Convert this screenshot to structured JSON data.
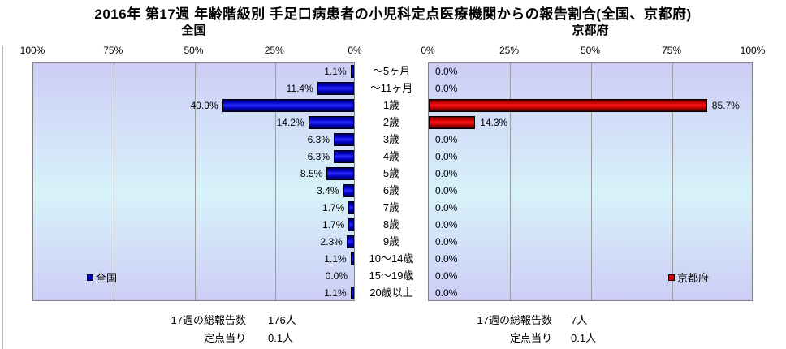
{
  "title": "2016年 第17週 年齢階級別 手足口病患者の小児科定点医療機関からの報告割合(全国、京都府)",
  "chart_data": {
    "type": "bar",
    "orientation": "horizontal",
    "layout": "back-to-back tornado, left axis reversed",
    "categories": [
      "～5ヶ月",
      "～11ヶ月",
      "1歳",
      "2歳",
      "3歳",
      "4歳",
      "5歳",
      "6歳",
      "7歳",
      "8歳",
      "9歳",
      "10～14歳",
      "15～19歳",
      "20歳以上"
    ],
    "series": [
      {
        "name": "全国",
        "values": [
          1.1,
          11.4,
          40.9,
          14.2,
          6.3,
          6.3,
          8.5,
          3.4,
          1.7,
          1.7,
          2.3,
          1.1,
          0.0,
          1.1
        ],
        "color": "#0000cc",
        "axis_ticks": [
          "100%",
          "75%",
          "50%",
          "25%",
          "0%"
        ]
      },
      {
        "name": "京都府",
        "values": [
          0.0,
          0.0,
          85.7,
          14.3,
          0.0,
          0.0,
          0.0,
          0.0,
          0.0,
          0.0,
          0.0,
          0.0,
          0.0,
          0.0
        ],
        "color": "#dd0000",
        "axis_ticks": [
          "0%",
          "25%",
          "50%",
          "75%",
          "100%"
        ]
      }
    ],
    "xlim": [
      0,
      100
    ],
    "value_suffix": "%",
    "grid": true,
    "gridline_interval_pct": 25
  },
  "left_panel": {
    "subtitle": "全国",
    "legend": "全国",
    "summary": [
      {
        "label": "17週の総報告数",
        "value": "176人"
      },
      {
        "label": "定点当り",
        "value": "0.1人"
      }
    ]
  },
  "right_panel": {
    "subtitle": "京都府",
    "legend": "京都府",
    "summary": [
      {
        "label": "17週の総報告数",
        "value": "7人"
      },
      {
        "label": "定点当り",
        "value": "0.1人"
      }
    ]
  }
}
